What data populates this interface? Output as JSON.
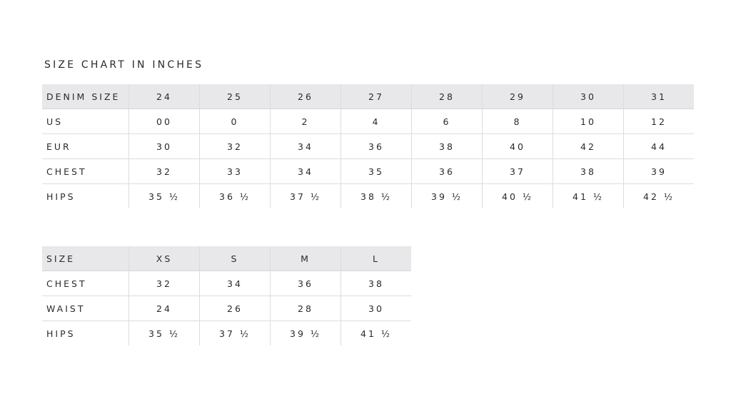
{
  "title": "SIZE CHART IN INCHES",
  "denim_table": {
    "header": [
      "DENIM SIZE",
      "24",
      "25",
      "26",
      "27",
      "28",
      "29",
      "30",
      "31"
    ],
    "rows": [
      [
        "US",
        "00",
        "0",
        "2",
        "4",
        "6",
        "8",
        "10",
        "12"
      ],
      [
        "EUR",
        "30",
        "32",
        "34",
        "36",
        "38",
        "40",
        "42",
        "44"
      ],
      [
        "CHEST",
        "32",
        "33",
        "34",
        "35",
        "36",
        "37",
        "38",
        "39"
      ],
      [
        "HIPS",
        "35 ½",
        "36 ½",
        "37 ½",
        "38 ½",
        "39 ½",
        "40 ½",
        "41 ½",
        "42 ½"
      ]
    ]
  },
  "size_table": {
    "header": [
      "SIZE",
      "XS",
      "S",
      "M",
      "L"
    ],
    "rows": [
      [
        "CHEST",
        "32",
        "34",
        "36",
        "38"
      ],
      [
        "WAIST",
        "24",
        "26",
        "28",
        "30"
      ],
      [
        "HIPS",
        "35 ½",
        "37 ½",
        "39 ½",
        "41 ½"
      ]
    ]
  },
  "colors": {
    "header_bg": "#e8e8ea",
    "grid": "#dcdcdc",
    "text": "#2a2a2a"
  }
}
